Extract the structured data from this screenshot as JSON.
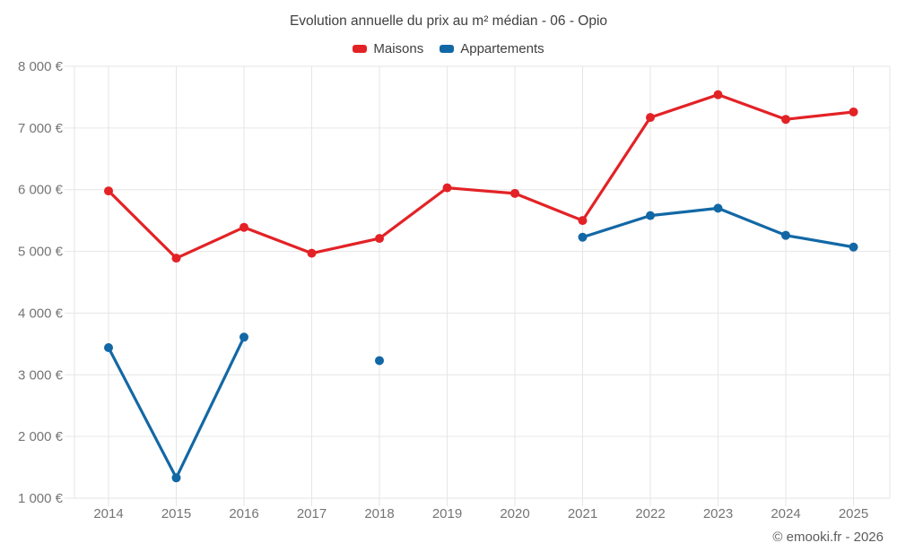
{
  "footer": {
    "copyright": "© emooki.fr - 2026"
  },
  "chart_data": {
    "type": "line",
    "title": "Evolution annuelle du prix au m² médian - 06 - Opio",
    "categories": [
      "2014",
      "2015",
      "2016",
      "2017",
      "2018",
      "2019",
      "2020",
      "2021",
      "2022",
      "2023",
      "2024",
      "2025"
    ],
    "series": [
      {
        "name": "Maisons",
        "color": "#e32226",
        "values": [
          5980,
          4890,
          5390,
          4970,
          5210,
          6030,
          5940,
          5500,
          7170,
          7540,
          7140,
          7260
        ]
      },
      {
        "name": "Appartements",
        "color": "#1268a5",
        "values": [
          3440,
          1330,
          3610,
          null,
          3230,
          null,
          null,
          5230,
          5580,
          5700,
          5260,
          5070
        ]
      }
    ],
    "ylim": [
      1000,
      8000
    ],
    "y_ticks": [
      {
        "value": 1000,
        "label": "1 000 €"
      },
      {
        "value": 2000,
        "label": "2 000 €"
      },
      {
        "value": 3000,
        "label": "3 000 €"
      },
      {
        "value": 4000,
        "label": "4 000 €"
      },
      {
        "value": 5000,
        "label": "5 000 €"
      },
      {
        "value": 6000,
        "label": "6 000 €"
      },
      {
        "value": 7000,
        "label": "7 000 €"
      },
      {
        "value": 8000,
        "label": "8 000 €"
      }
    ],
    "grid": true,
    "legend_position": "top",
    "grid_color": "#e6e6e6"
  }
}
